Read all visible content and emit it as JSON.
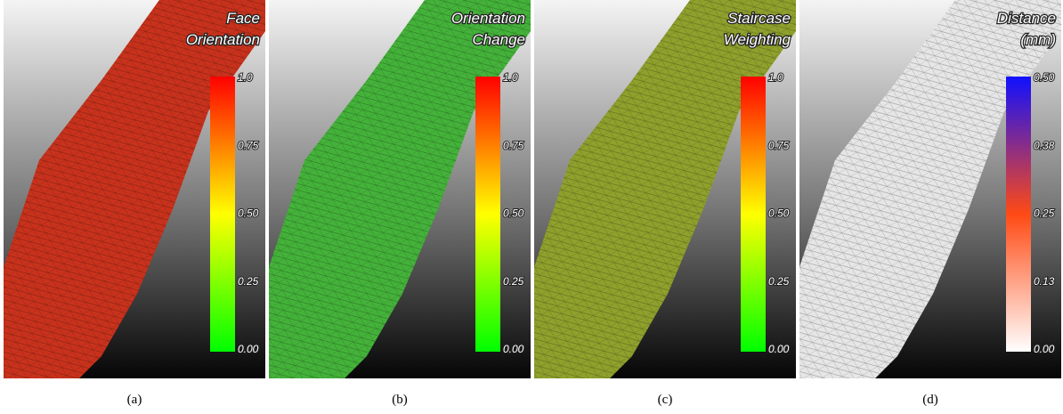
{
  "panels": [
    {
      "title": [
        "Face",
        "Orientation"
      ],
      "ticks": [
        "1.0",
        "0.75",
        "0.50",
        "0.25",
        "0.00"
      ],
      "colormap": [
        "#ff0000",
        "#ffff00",
        "#00ff00"
      ],
      "surface_color": "#c8321c",
      "caption": "(a)"
    },
    {
      "title": [
        "Orientation",
        "Change"
      ],
      "ticks": [
        "1.0",
        "0.75",
        "0.50",
        "0.25",
        "0.00"
      ],
      "colormap": [
        "#ff0000",
        "#ffff00",
        "#00ff00"
      ],
      "surface_color": "#44b23a",
      "caption": "(b)"
    },
    {
      "title": [
        "Staircase",
        "Weighting"
      ],
      "ticks": [
        "1.0",
        "0.75",
        "0.50",
        "0.25",
        "0.00"
      ],
      "colormap": [
        "#ff0000",
        "#ffff00",
        "#00ff00"
      ],
      "surface_color": "#8fa02c",
      "caption": "(c)"
    },
    {
      "title": [
        "Distance",
        "(mm)"
      ],
      "ticks": [
        "0.50",
        "0.38",
        "0.25",
        "0.13",
        "0.00"
      ],
      "colormap": [
        "#1010ff",
        "#ff4a14",
        "#ffffff"
      ],
      "surface_color": "#e6e6e6",
      "caption": "(d)"
    }
  ]
}
